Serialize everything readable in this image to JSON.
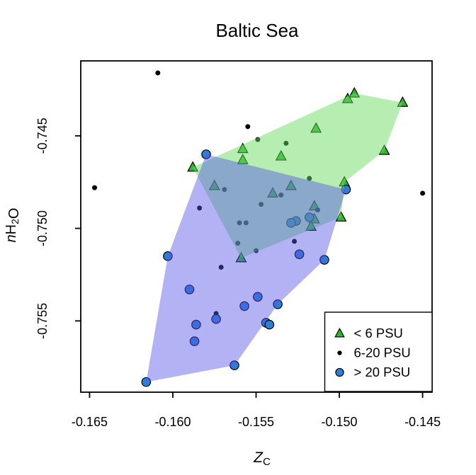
{
  "chart_data": {
    "type": "scatter",
    "title": "Baltic Sea",
    "xlabel_parts": [
      {
        "t": "Z",
        "style": "italic"
      },
      {
        "t": "C",
        "sub": true
      }
    ],
    "ylabel_parts": [
      {
        "t": "n",
        "style": "italic"
      },
      {
        "t": "H"
      },
      {
        "t": "2",
        "sub": true
      },
      {
        "t": "O"
      }
    ],
    "xlim": [
      -0.16553,
      -0.14443
    ],
    "ylim": [
      -0.75885,
      -0.74095
    ],
    "xticks": {
      "values": [
        -0.165,
        -0.16,
        -0.155,
        -0.15,
        -0.145
      ],
      "labels": [
        "-0.165",
        "-0.160",
        "-0.155",
        "-0.150",
        "-0.145"
      ]
    },
    "yticks": {
      "values": [
        -0.745,
        -0.75,
        -0.755
      ],
      "labels": [
        "-0.745",
        "-0.750",
        "-0.755"
      ]
    },
    "grid": false,
    "background": "#ffffff",
    "marker_stroke": "#000000",
    "legend": {
      "position": "bottom-right",
      "items": [
        {
          "label": "< 6 PSU",
          "marker": "triangle",
          "color": "#2db82d"
        },
        {
          "label": "6-20 PSU",
          "marker": "dot",
          "color": "#000000"
        },
        {
          "label": "> 20 PSU",
          "marker": "circle",
          "color": "#2b7fd9"
        }
      ]
    },
    "series": [
      {
        "name": "< 6 PSU",
        "marker": "triangle",
        "color": "#2db82d",
        "points": [
          [
            -0.1588,
            -0.7467
          ],
          [
            -0.1558,
            -0.7457
          ],
          [
            -0.1558,
            -0.7463
          ],
          [
            -0.1575,
            -0.7477
          ],
          [
            -0.1495,
            -0.743
          ],
          [
            -0.1491,
            -0.7427
          ],
          [
            -0.1462,
            -0.7432
          ],
          [
            -0.1514,
            -0.7446
          ],
          [
            -0.1535,
            -0.7461
          ],
          [
            -0.1473,
            -0.7458
          ],
          [
            -0.1529,
            -0.7477
          ],
          [
            -0.154,
            -0.7481
          ],
          [
            -0.1497,
            -0.7475
          ],
          [
            -0.1515,
            -0.7488
          ],
          [
            -0.1515,
            -0.7495
          ],
          [
            -0.1517,
            -0.7499
          ],
          [
            -0.1499,
            -0.7494
          ],
          [
            -0.1559,
            -0.7516
          ]
        ],
        "hull": {
          "fill": "#6EDC64",
          "opacity": 0.5,
          "vertices": [
            [
              -0.1588,
              -0.7467
            ],
            [
              -0.1491,
              -0.7427
            ],
            [
              -0.1462,
              -0.7432
            ],
            [
              -0.1473,
              -0.7458
            ],
            [
              -0.1497,
              -0.7475
            ],
            [
              -0.1499,
              -0.7494
            ],
            [
              -0.1559,
              -0.7516
            ]
          ]
        }
      },
      {
        "name": "6-20 PSU",
        "marker": "dot",
        "color": "#000000",
        "points": [
          [
            -0.1609,
            -0.7416
          ],
          [
            -0.1647,
            -0.7478
          ],
          [
            -0.1555,
            -0.7445
          ],
          [
            -0.1549,
            -0.7452
          ],
          [
            -0.1532,
            -0.7454
          ],
          [
            -0.1518,
            -0.7473
          ],
          [
            -0.1569,
            -0.7479
          ],
          [
            -0.1584,
            -0.7489
          ],
          [
            -0.1547,
            -0.7487
          ],
          [
            -0.1535,
            -0.7482
          ],
          [
            -0.156,
            -0.7497
          ],
          [
            -0.1556,
            -0.7497
          ],
          [
            -0.145,
            -0.7481
          ],
          [
            -0.1513,
            -0.749
          ],
          [
            -0.1527,
            -0.7507
          ],
          [
            -0.1561,
            -0.7508
          ],
          [
            -0.155,
            -0.7512
          ],
          [
            -0.1571,
            -0.7521
          ],
          [
            -0.1574,
            -0.7546
          ]
        ]
      },
      {
        "name": "> 20 PSU",
        "marker": "circle",
        "color": "#2b7fd9",
        "points": [
          [
            -0.158,
            -0.746
          ],
          [
            -0.1496,
            -0.7479
          ],
          [
            -0.1518,
            -0.7494
          ],
          [
            -0.1526,
            -0.7496
          ],
          [
            -0.1529,
            -0.7497
          ],
          [
            -0.1524,
            -0.7514
          ],
          [
            -0.1509,
            -0.7517
          ],
          [
            -0.1537,
            -0.7541
          ],
          [
            -0.1603,
            -0.7515
          ],
          [
            -0.159,
            -0.7533
          ],
          [
            -0.1549,
            -0.7537
          ],
          [
            -0.1557,
            -0.7542
          ],
          [
            -0.1574,
            -0.7549
          ],
          [
            -0.1586,
            -0.7552
          ],
          [
            -0.1544,
            -0.7551
          ],
          [
            -0.1542,
            -0.7552
          ],
          [
            -0.1587,
            -0.7561
          ],
          [
            -0.1563,
            -0.7574
          ],
          [
            -0.1616,
            -0.7583
          ]
        ],
        "hull": {
          "fill": "#5454E9",
          "opacity": 0.45,
          "vertices": [
            [
              -0.158,
              -0.746
            ],
            [
              -0.1496,
              -0.7479
            ],
            [
              -0.1509,
              -0.7517
            ],
            [
              -0.1537,
              -0.7541
            ],
            [
              -0.1563,
              -0.7574
            ],
            [
              -0.1616,
              -0.7583
            ],
            [
              -0.1603,
              -0.7515
            ]
          ]
        }
      }
    ]
  }
}
